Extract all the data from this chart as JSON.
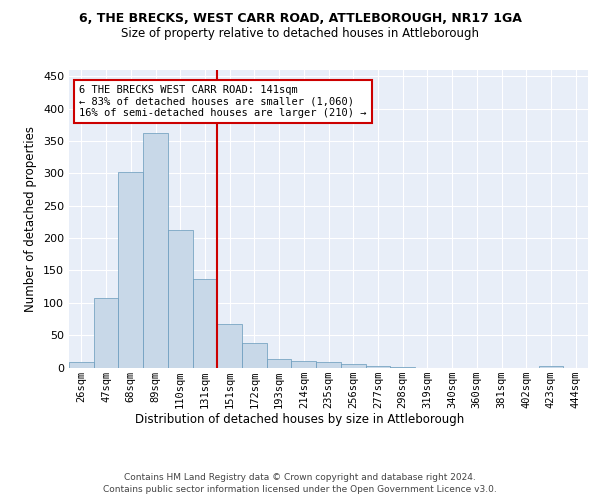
{
  "title_line1": "6, THE BRECKS, WEST CARR ROAD, ATTLEBOROUGH, NR17 1GA",
  "title_line2": "Size of property relative to detached houses in Attleborough",
  "xlabel": "Distribution of detached houses by size in Attleborough",
  "ylabel": "Number of detached properties",
  "footer_line1": "Contains HM Land Registry data © Crown copyright and database right 2024.",
  "footer_line2": "Contains public sector information licensed under the Open Government Licence v3.0.",
  "categories": [
    "26sqm",
    "47sqm",
    "68sqm",
    "89sqm",
    "110sqm",
    "131sqm",
    "151sqm",
    "172sqm",
    "193sqm",
    "214sqm",
    "235sqm",
    "256sqm",
    "277sqm",
    "298sqm",
    "319sqm",
    "340sqm",
    "360sqm",
    "381sqm",
    "402sqm",
    "423sqm",
    "444sqm"
  ],
  "values": [
    8,
    108,
    302,
    362,
    213,
    137,
    68,
    38,
    13,
    10,
    9,
    6,
    2,
    1,
    0,
    0,
    0,
    0,
    0,
    3,
    0
  ],
  "bar_color": "#c8d8e8",
  "bar_edge_color": "#6699bb",
  "background_color": "#e8eef8",
  "ylim": [
    0,
    460
  ],
  "yticks": [
    0,
    50,
    100,
    150,
    200,
    250,
    300,
    350,
    400,
    450
  ],
  "annotation_text_line1": "6 THE BRECKS WEST CARR ROAD: 141sqm",
  "annotation_text_line2": "← 83% of detached houses are smaller (1,060)",
  "annotation_text_line3": "16% of semi-detached houses are larger (210) →",
  "annotation_box_color": "#ffffff",
  "annotation_box_edge_color": "#cc0000",
  "vline_color": "#cc0000",
  "vline_x": 5.5
}
